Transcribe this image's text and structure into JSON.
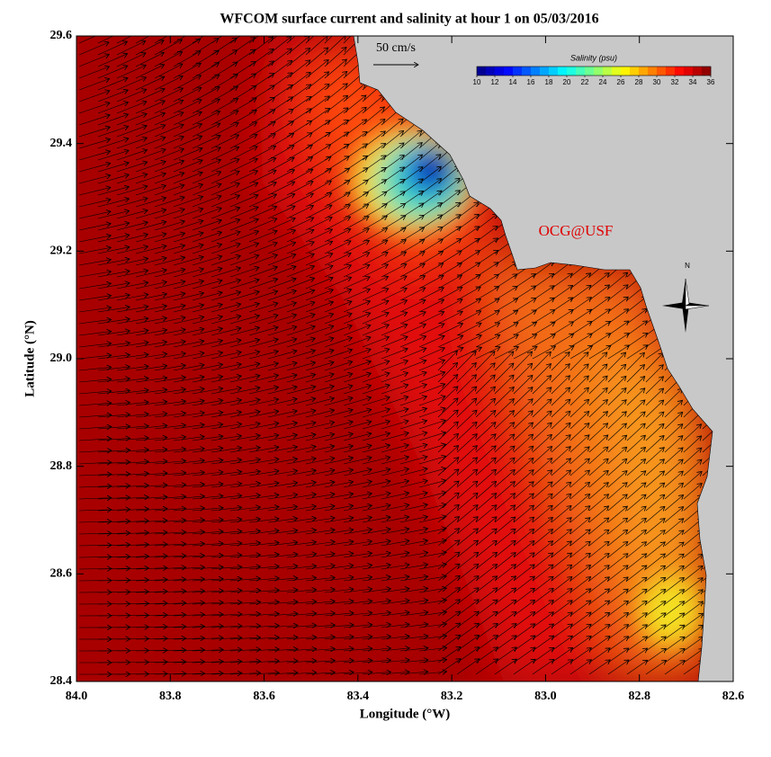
{
  "title": "WFCOM surface current and salinity at hour 1 on 05/03/2016",
  "xlabel": "Longitude (°W)",
  "ylabel": "Latitude (°N)",
  "xlim": [
    84.0,
    82.6
  ],
  "ylim": [
    28.4,
    29.6
  ],
  "xticks": [
    {
      "value": 84.0,
      "label": "84.0"
    },
    83.8,
    83.6,
    83.4,
    83.2,
    {
      "value": 83.0,
      "label": "83.0"
    },
    82.8,
    82.6
  ],
  "yticks": [
    28.4,
    28.6,
    28.8,
    {
      "value": 29.0,
      "label": "29.0"
    },
    29.2,
    29.4,
    29.6
  ],
  "colorbar": {
    "title": "Salinity (psu)",
    "ticks": [
      10,
      12,
      14,
      16,
      18,
      20,
      22,
      24,
      26,
      28,
      30,
      32,
      34,
      36
    ]
  },
  "scale_label": "50 cm/s",
  "watermark": "OCG@USF",
  "compass": "N"
}
